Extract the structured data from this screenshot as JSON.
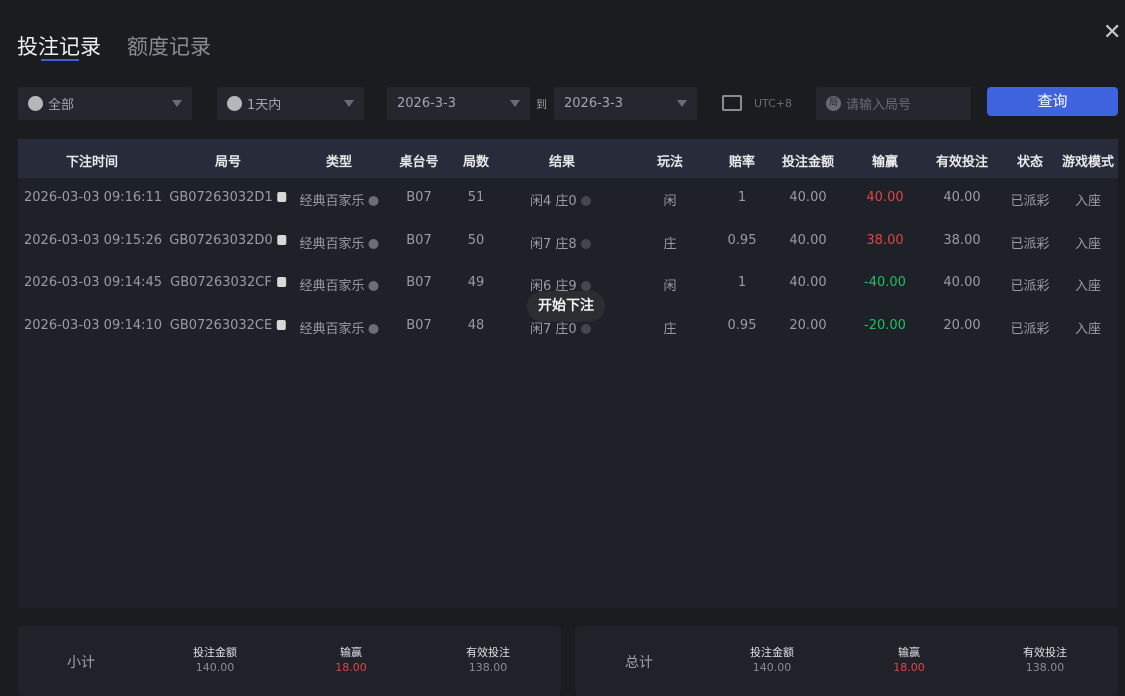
{
  "tabs": [
    {
      "label": "投注记录",
      "active": true
    },
    {
      "label": "额度记录",
      "active": false
    }
  ],
  "filters": {
    "game_type": "全部",
    "time_range": "1天内",
    "date_from": "2026-3-3",
    "to_label": "到",
    "date_to": "2026-3-3",
    "timezone": "UTC+8",
    "round_placeholder": "请输入局号",
    "round_icon_char": "局",
    "query_label": "查询"
  },
  "table": {
    "columns": [
      "下注时间",
      "局号",
      "类型",
      "桌台号",
      "局数",
      "结果",
      "玩法",
      "赔率",
      "投注金额",
      "输赢",
      "有效投注",
      "状态",
      "游戏模式"
    ],
    "rows": [
      {
        "time": "2026-03-03 09:16:11",
        "round_id": "GB07263032D1",
        "type": "经典百家乐",
        "table": "B07",
        "round": "51",
        "result": "闲4 庄0",
        "play": "闲",
        "odds": "1",
        "amount": "40.00",
        "winloss": "40.00",
        "valid": "40.00",
        "status": "已派彩",
        "mode": "入座"
      },
      {
        "time": "2026-03-03 09:15:26",
        "round_id": "GB07263032D0",
        "type": "经典百家乐",
        "table": "B07",
        "round": "50",
        "result": "闲7 庄8",
        "play": "庄",
        "odds": "0.95",
        "amount": "40.00",
        "winloss": "38.00",
        "valid": "38.00",
        "status": "已派彩",
        "mode": "入座"
      },
      {
        "time": "2026-03-03 09:14:45",
        "round_id": "GB07263032CF",
        "type": "经典百家乐",
        "table": "B07",
        "round": "49",
        "result": "闲6 庄9",
        "play": "闲",
        "odds": "1",
        "amount": "40.00",
        "winloss": "-40.00",
        "valid": "40.00",
        "status": "已派彩",
        "mode": "入座"
      },
      {
        "time": "2026-03-03 09:14:10",
        "round_id": "GB07263032CE",
        "type": "经典百家乐",
        "table": "B07",
        "round": "48",
        "result": "闲7 庄0",
        "play": "庄",
        "odds": "0.95",
        "amount": "20.00",
        "winloss": "-20.00",
        "valid": "20.00",
        "status": "已派彩",
        "mode": "入座"
      }
    ]
  },
  "tooltip": "开始下注",
  "subtotal": {
    "label": "小计",
    "amount_label": "投注金额",
    "amount": "140.00",
    "winloss_label": "输赢",
    "winloss": "18.00",
    "valid_label": "有效投注",
    "valid": "138.00"
  },
  "total": {
    "label": "总计",
    "amount_label": "投注金额",
    "amount": "140.00",
    "winloss_label": "输赢",
    "winloss": "18.00",
    "valid_label": "有效投注",
    "valid": "138.00"
  },
  "colors": {
    "accent": "#3f63df",
    "win": "#e04444",
    "loss": "#1fbf5f"
  }
}
